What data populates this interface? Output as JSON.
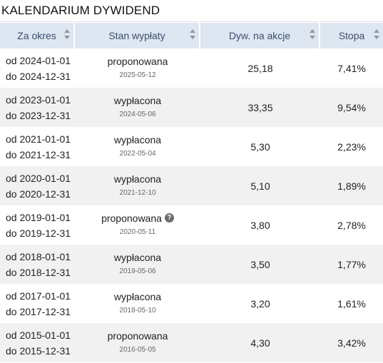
{
  "title": "KALENDARIUM DYWIDEND",
  "columns": [
    "Za okres",
    "Stan wypłaty",
    "Dyw. na akcje",
    "Stopa"
  ],
  "rows": [
    {
      "from": "od 2024-01-01",
      "to": "do 2024-12-31",
      "status": "proponowana",
      "date": "2025-05-12",
      "dividend": "25,18",
      "rate": "7,41%"
    },
    {
      "from": "od 2023-01-01",
      "to": "do 2023-12-31",
      "status": "wypłacona",
      "date": "2024-05-06",
      "dividend": "33,35",
      "rate": "9,54%"
    },
    {
      "from": "od 2021-01-01",
      "to": "do 2021-12-31",
      "status": "wypłacona",
      "date": "2022-05-04",
      "dividend": "5,30",
      "rate": "2,23%"
    },
    {
      "from": "od 2020-01-01",
      "to": "do 2020-12-31",
      "status": "wypłacona",
      "date": "2021-12-10",
      "dividend": "5,10",
      "rate": "1,89%"
    },
    {
      "from": "od 2019-01-01",
      "to": "do 2019-12-31",
      "status": "proponowana",
      "date": "2020-05-11",
      "dividend": "3,80",
      "rate": "2,78%",
      "info_icon": "question-circle-icon"
    },
    {
      "from": "od 2018-01-01",
      "to": "do 2018-12-31",
      "status": "wypłacona",
      "date": "2019-05-06",
      "dividend": "3,50",
      "rate": "1,77%"
    },
    {
      "from": "od 2017-01-01",
      "to": "do 2017-12-31",
      "status": "wypłacona",
      "date": "2018-05-10",
      "dividend": "3,20",
      "rate": "1,61%"
    },
    {
      "from": "od 2015-01-01",
      "to": "do 2015-12-31",
      "status": "proponowana",
      "date": "2016-05-05",
      "dividend": "4,30",
      "rate": "3,42%"
    }
  ],
  "colors": {
    "header_bg": "#dde6f1",
    "header_text": "#3b4f6d",
    "stripe": "#f1f1f1"
  }
}
